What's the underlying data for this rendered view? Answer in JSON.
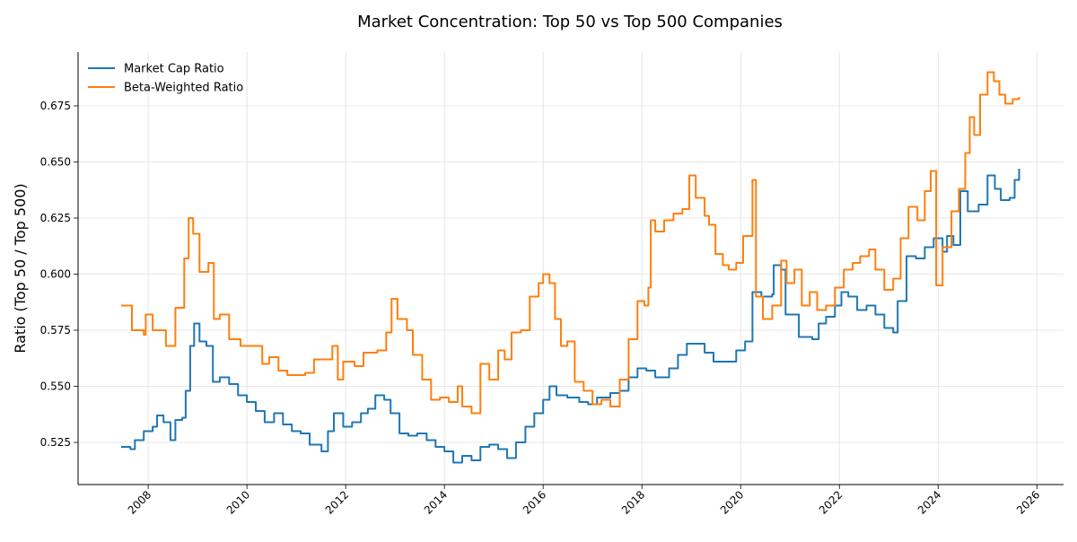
{
  "chart_data": {
    "type": "line",
    "title": "Market Concentration: Top 50 vs Top 500 Companies",
    "xlabel": "",
    "ylabel": "Ratio (Top 50 / Top 500)",
    "xlim": [
      2006.58,
      2026.54
    ],
    "ylim": [
      0.5062,
      0.699
    ],
    "grid": true,
    "legend_position": "top-left",
    "x_ticks": [
      2008,
      2010,
      2012,
      2014,
      2016,
      2018,
      2020,
      2022,
      2024,
      2026
    ],
    "x_tick_labels": [
      "2008",
      "2010",
      "2012",
      "2014",
      "2016",
      "2018",
      "2020",
      "2022",
      "2024",
      "2026"
    ],
    "y_ticks": [
      0.525,
      0.55,
      0.575,
      0.6,
      0.625,
      0.65,
      0.675
    ],
    "y_tick_labels": [
      "0.525",
      "0.550",
      "0.575",
      "0.600",
      "0.625",
      "0.650",
      "0.675"
    ],
    "series": [
      {
        "name": "Market Cap Ratio",
        "color": "#1f77b4",
        "x": [
          2007.45,
          2007.64,
          2007.73,
          2007.91,
          2008.09,
          2008.18,
          2008.31,
          2008.45,
          2008.55,
          2008.69,
          2008.76,
          2008.85,
          2008.93,
          2009.04,
          2009.18,
          2009.31,
          2009.45,
          2009.64,
          2009.82,
          2010.0,
          2010.18,
          2010.36,
          2010.55,
          2010.73,
          2010.91,
          2011.09,
          2011.27,
          2011.51,
          2011.64,
          2011.76,
          2011.95,
          2012.13,
          2012.31,
          2012.45,
          2012.6,
          2012.78,
          2012.91,
          2013.09,
          2013.27,
          2013.45,
          2013.64,
          2013.82,
          2014.0,
          2014.18,
          2014.36,
          2014.55,
          2014.73,
          2014.91,
          2015.09,
          2015.27,
          2015.45,
          2015.64,
          2015.82,
          2016.0,
          2016.13,
          2016.27,
          2016.49,
          2016.73,
          2016.91,
          2017.09,
          2017.36,
          2017.55,
          2017.73,
          2017.91,
          2018.09,
          2018.27,
          2018.55,
          2018.73,
          2018.91,
          2019.09,
          2019.27,
          2019.45,
          2019.73,
          2019.91,
          2020.09,
          2020.24,
          2020.42,
          2020.64,
          2020.67,
          2020.82,
          2020.91,
          2021.09,
          2021.18,
          2021.45,
          2021.58,
          2021.73,
          2021.91,
          2022.04,
          2022.18,
          2022.36,
          2022.55,
          2022.73,
          2022.91,
          2023.09,
          2023.18,
          2023.36,
          2023.55,
          2023.73,
          2023.91,
          2024.09,
          2024.18,
          2024.31,
          2024.45,
          2024.6,
          2024.82,
          2025.0,
          2025.15,
          2025.27,
          2025.45,
          2025.55,
          2025.64
        ],
        "y": [
          0.523,
          0.522,
          0.526,
          0.53,
          0.532,
          0.537,
          0.534,
          0.526,
          0.535,
          0.536,
          0.548,
          0.568,
          0.578,
          0.57,
          0.568,
          0.552,
          0.554,
          0.551,
          0.546,
          0.543,
          0.539,
          0.534,
          0.538,
          0.533,
          0.53,
          0.529,
          0.524,
          0.521,
          0.53,
          0.538,
          0.532,
          0.534,
          0.538,
          0.54,
          0.546,
          0.544,
          0.538,
          0.529,
          0.528,
          0.529,
          0.526,
          0.523,
          0.521,
          0.516,
          0.519,
          0.517,
          0.523,
          0.524,
          0.522,
          0.518,
          0.525,
          0.532,
          0.538,
          0.544,
          0.55,
          0.546,
          0.545,
          0.543,
          0.542,
          0.545,
          0.547,
          0.548,
          0.554,
          0.558,
          0.557,
          0.554,
          0.558,
          0.564,
          0.569,
          0.569,
          0.565,
          0.561,
          0.561,
          0.566,
          0.57,
          0.592,
          0.59,
          0.591,
          0.604,
          0.602,
          0.582,
          0.582,
          0.572,
          0.571,
          0.578,
          0.581,
          0.586,
          0.592,
          0.59,
          0.584,
          0.586,
          0.582,
          0.576,
          0.574,
          0.588,
          0.608,
          0.607,
          0.612,
          0.616,
          0.61,
          0.617,
          0.613,
          0.637,
          0.628,
          0.631,
          0.644,
          0.638,
          0.633,
          0.634,
          0.642,
          0.647
        ]
      },
      {
        "name": "Beta-Weighted Ratio",
        "color": "#ff7f0e",
        "x": [
          2007.45,
          2007.64,
          2007.67,
          2007.91,
          2007.95,
          2008.09,
          2008.36,
          2008.55,
          2008.73,
          2008.82,
          2008.91,
          2009.04,
          2009.22,
          2009.33,
          2009.45,
          2009.64,
          2009.87,
          2010.18,
          2010.31,
          2010.45,
          2010.64,
          2010.82,
          2011.18,
          2011.36,
          2011.73,
          2011.84,
          2011.95,
          2012.18,
          2012.36,
          2012.64,
          2012.82,
          2012.93,
          2013.05,
          2013.24,
          2013.36,
          2013.55,
          2013.73,
          2013.91,
          2014.09,
          2014.27,
          2014.36,
          2014.55,
          2014.73,
          2014.91,
          2015.09,
          2015.22,
          2015.36,
          2015.55,
          2015.73,
          2015.91,
          2016.0,
          2016.13,
          2016.24,
          2016.36,
          2016.49,
          2016.64,
          2016.82,
          2017.0,
          2017.18,
          2017.36,
          2017.55,
          2017.73,
          2017.91,
          2018.05,
          2018.13,
          2018.18,
          2018.27,
          2018.45,
          2018.64,
          2018.82,
          2018.96,
          2019.09,
          2019.27,
          2019.36,
          2019.49,
          2019.64,
          2019.76,
          2019.91,
          2020.05,
          2020.2,
          2020.24,
          2020.31,
          2020.45,
          2020.64,
          2020.82,
          2020.93,
          2021.09,
          2021.24,
          2021.4,
          2021.55,
          2021.73,
          2021.91,
          2022.09,
          2022.27,
          2022.42,
          2022.6,
          2022.73,
          2022.91,
          2023.09,
          2023.24,
          2023.4,
          2023.58,
          2023.73,
          2023.85,
          2023.96,
          2024.09,
          2024.27,
          2024.42,
          2024.55,
          2024.64,
          2024.73,
          2024.85,
          2025.0,
          2025.13,
          2025.24,
          2025.36,
          2025.51,
          2025.64
        ],
        "y": [
          0.586,
          0.586,
          0.575,
          0.573,
          0.582,
          0.575,
          0.568,
          0.585,
          0.607,
          0.625,
          0.618,
          0.601,
          0.605,
          0.58,
          0.582,
          0.571,
          0.568,
          0.568,
          0.56,
          0.563,
          0.557,
          0.555,
          0.556,
          0.562,
          0.568,
          0.553,
          0.561,
          0.559,
          0.565,
          0.566,
          0.574,
          0.589,
          0.58,
          0.575,
          0.564,
          0.553,
          0.544,
          0.545,
          0.543,
          0.55,
          0.541,
          0.538,
          0.56,
          0.553,
          0.566,
          0.562,
          0.574,
          0.575,
          0.59,
          0.596,
          0.6,
          0.596,
          0.58,
          0.568,
          0.57,
          0.552,
          0.548,
          0.542,
          0.544,
          0.541,
          0.553,
          0.571,
          0.588,
          0.586,
          0.594,
          0.624,
          0.619,
          0.624,
          0.627,
          0.629,
          0.644,
          0.634,
          0.626,
          0.622,
          0.609,
          0.604,
          0.602,
          0.605,
          0.617,
          0.617,
          0.642,
          0.59,
          0.58,
          0.586,
          0.606,
          0.596,
          0.602,
          0.586,
          0.592,
          0.584,
          0.586,
          0.594,
          0.602,
          0.605,
          0.608,
          0.611,
          0.602,
          0.593,
          0.598,
          0.616,
          0.63,
          0.624,
          0.637,
          0.646,
          0.595,
          0.612,
          0.628,
          0.638,
          0.654,
          0.67,
          0.662,
          0.68,
          0.69,
          0.686,
          0.68,
          0.676,
          0.678,
          0.679
        ]
      }
    ]
  }
}
